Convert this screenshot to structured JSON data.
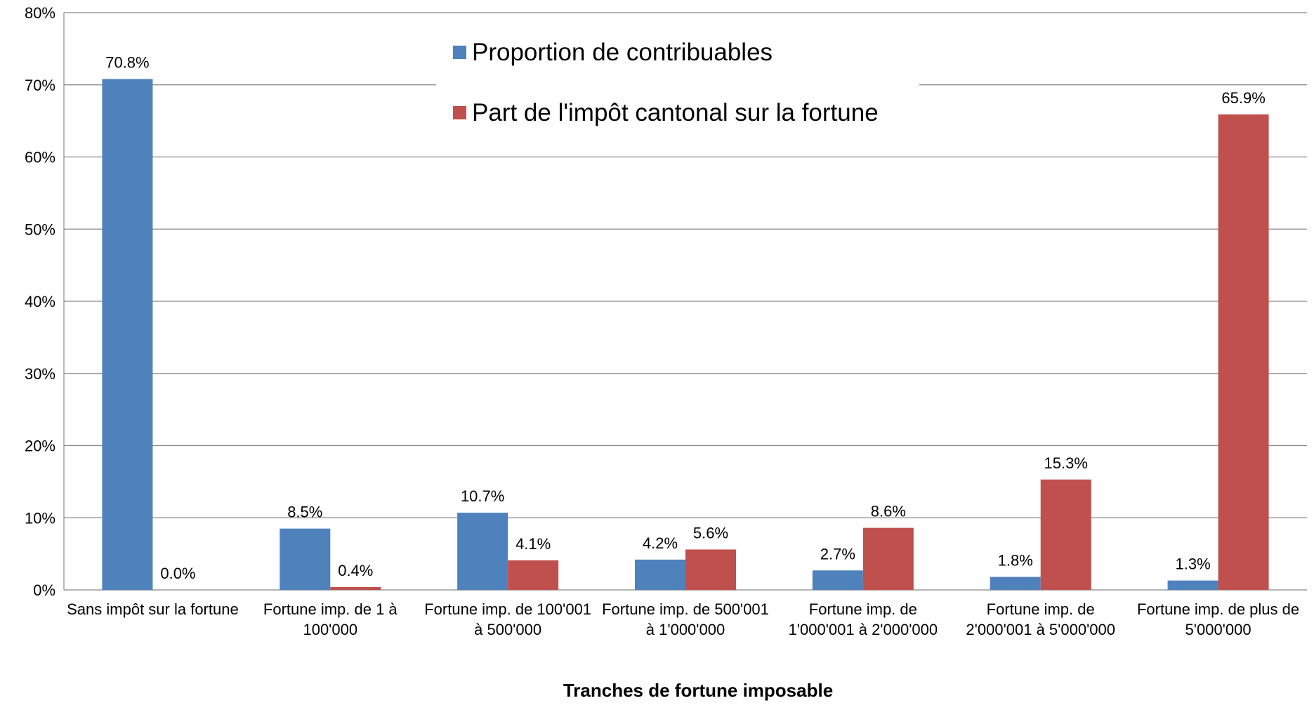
{
  "chart_data": {
    "type": "bar",
    "x_label": "Tranches de fortune imposable",
    "categories": [
      "Sans impôt sur la fortune",
      "Fortune imp. de 1 à 100'000",
      "Fortune imp. de 100'001 à 500'000",
      "Fortune imp. de 500'001 à 1'000'000",
      "Fortune imp. de 1'000'001 à 2'000'000",
      "Fortune imp. de 2'000'001 à 5'000'000",
      "Fortune imp. de plus de 5'000'000"
    ],
    "series": [
      {
        "name": "Proportion de contribuables",
        "color": "#4f81bd",
        "values": [
          70.8,
          8.5,
          10.7,
          4.2,
          2.7,
          1.8,
          1.3
        ],
        "value_labels": [
          "70.8%",
          "8.5%",
          "10.7%",
          "4.2%",
          "2.7%",
          "1.8%",
          "1.3%"
        ]
      },
      {
        "name": "Part de l'impôt cantonal sur la fortune",
        "color": "#c0504d",
        "values": [
          0.0,
          0.4,
          4.1,
          5.6,
          8.6,
          15.3,
          65.9
        ],
        "value_labels": [
          "0.0%",
          "0.4%",
          "4.1%",
          "5.6%",
          "8.6%",
          "15.3%",
          "65.9%"
        ]
      }
    ],
    "ylim": [
      0,
      80
    ],
    "yticks": [
      {
        "value": 0,
        "label": "0%"
      },
      {
        "value": 10,
        "label": "10%"
      },
      {
        "value": 20,
        "label": "20%"
      },
      {
        "value": 30,
        "label": "30%"
      },
      {
        "value": 40,
        "label": "40%"
      },
      {
        "value": 50,
        "label": "50%"
      },
      {
        "value": 60,
        "label": "60%"
      },
      {
        "value": 70,
        "label": "70%"
      },
      {
        "value": 80,
        "label": "80%"
      }
    ],
    "grid": true,
    "legend": "top"
  }
}
